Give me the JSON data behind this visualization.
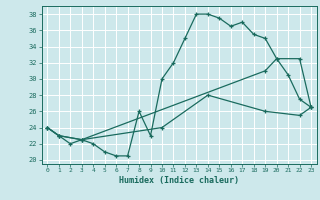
{
  "xlabel": "Humidex (Indice chaleur)",
  "ylim": [
    19.5,
    39
  ],
  "xlim": [
    -0.5,
    23.5
  ],
  "yticks": [
    20,
    22,
    24,
    26,
    28,
    30,
    32,
    34,
    36,
    38
  ],
  "xticks": [
    0,
    1,
    2,
    3,
    4,
    5,
    6,
    7,
    8,
    9,
    10,
    11,
    12,
    13,
    14,
    15,
    16,
    17,
    18,
    19,
    20,
    21,
    22,
    23
  ],
  "bg_color": "#cde8eb",
  "grid_color": "#ffffff",
  "line_color": "#1a6b5e",
  "curve1_x": [
    0,
    1,
    2,
    3,
    4,
    5,
    6,
    7,
    8,
    9,
    10,
    11,
    12,
    13,
    14,
    15,
    16,
    17,
    18,
    19,
    20,
    21,
    22,
    23
  ],
  "curve1_y": [
    24,
    23,
    22,
    22.5,
    22,
    21,
    20.5,
    20.5,
    26,
    23,
    30,
    32,
    35,
    38,
    38,
    37.5,
    36.5,
    37,
    35.5,
    35,
    32.5,
    30.5,
    27.5,
    26.5
  ],
  "curve2_x": [
    0,
    1,
    3,
    19,
    20,
    22,
    23
  ],
  "curve2_y": [
    24,
    23,
    22.5,
    31,
    32.5,
    32.5,
    26.5
  ],
  "curve3_x": [
    0,
    1,
    3,
    10,
    14,
    19,
    22,
    23
  ],
  "curve3_y": [
    24,
    23,
    22.5,
    24,
    28,
    26,
    25.5,
    26.5
  ]
}
